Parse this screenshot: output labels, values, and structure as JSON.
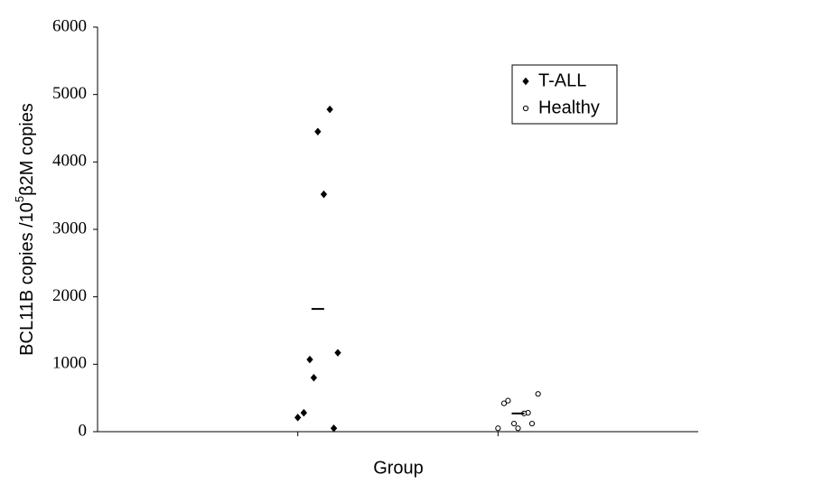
{
  "chart_data": {
    "type": "scatter",
    "xlabel": "Group",
    "ylabel": [
      "BCL11B copies /10",
      "5",
      "β2M copies"
    ],
    "xlim": [
      0,
      3
    ],
    "xticks": [
      1,
      2
    ],
    "ylim": [
      0,
      6000
    ],
    "yticks": [
      0,
      1000,
      2000,
      3000,
      4000,
      5000,
      6000
    ],
    "legend": "top-right",
    "series": [
      {
        "name": "T-ALL",
        "color": "#000000",
        "marker": "diamond",
        "filled": true,
        "x": [
          1.16,
          1.1,
          1.13,
          1.2,
          1.06,
          1.08,
          1.03,
          1.0,
          1.18
        ],
        "values": [
          4780,
          4450,
          3520,
          1170,
          1070,
          800,
          280,
          210,
          50
        ]
      },
      {
        "name": "Healthy",
        "color": "#000000",
        "marker": "circle",
        "filled": false,
        "x": [
          2.2,
          2.05,
          2.03,
          2.15,
          2.13,
          2.08,
          2.17,
          2.0,
          2.1
        ],
        "values": [
          560,
          460,
          420,
          280,
          270,
          120,
          120,
          50,
          50
        ]
      }
    ],
    "mean_markers": [
      {
        "x": 1.1,
        "y": 1820
      },
      {
        "x": 2.1,
        "y": 270
      }
    ]
  }
}
